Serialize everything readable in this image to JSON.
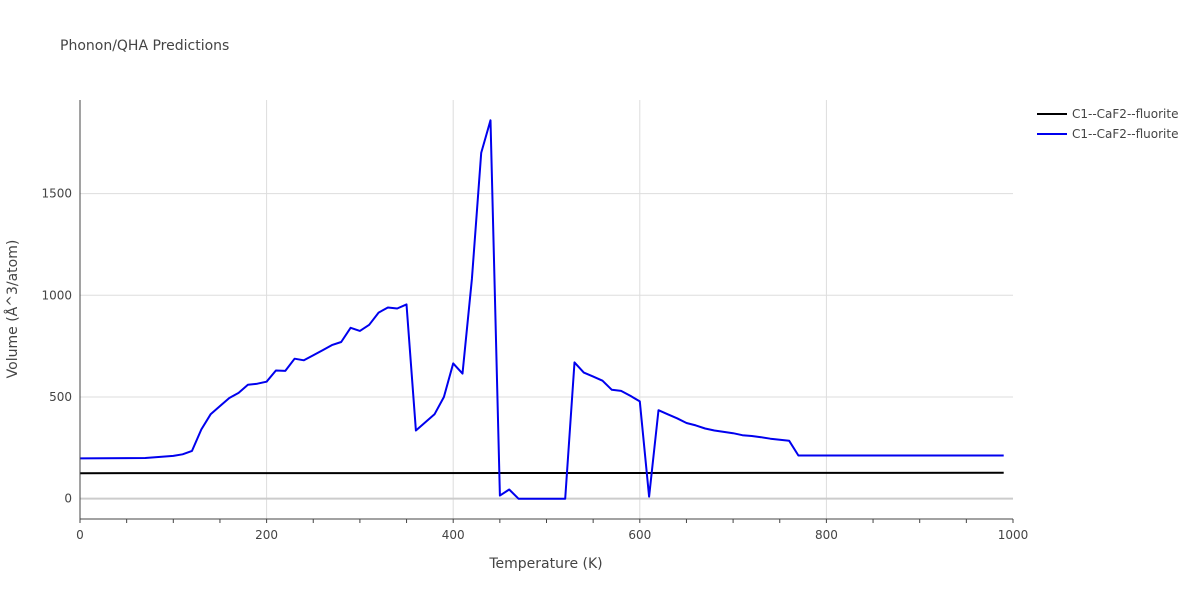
{
  "chart_data": {
    "type": "line",
    "title": "Phonon/QHA Predictions",
    "xlabel": "Temperature (K)",
    "ylabel": "Volume (Å^3/atom)",
    "xlim": [
      0,
      1000
    ],
    "ylim": [
      -100,
      1960
    ],
    "xticks": [
      0,
      200,
      400,
      600,
      800,
      1000
    ],
    "yticks": [
      0,
      500,
      1000,
      1500
    ],
    "grid": true,
    "legend_position": "top-right",
    "series": [
      {
        "name": "C1--CaF2--fluorite",
        "color": "#000000",
        "x": [
          0,
          990
        ],
        "y": [
          125,
          127
        ]
      },
      {
        "name": "C1--CaF2--fluorite",
        "color": "#0000ee",
        "x": [
          0,
          70,
          100,
          110,
          120,
          130,
          140,
          150,
          160,
          170,
          180,
          190,
          200,
          210,
          220,
          230,
          240,
          250,
          260,
          270,
          280,
          290,
          300,
          310,
          320,
          330,
          340,
          350,
          360,
          370,
          380,
          390,
          400,
          410,
          420,
          430,
          440,
          450,
          460,
          470,
          480,
          490,
          500,
          510,
          520,
          530,
          540,
          550,
          560,
          570,
          580,
          590,
          600,
          610,
          620,
          630,
          640,
          650,
          660,
          670,
          680,
          690,
          700,
          710,
          720,
          730,
          740,
          750,
          760,
          770,
          780,
          800,
          850,
          900,
          950,
          990
        ],
        "y": [
          198,
          200,
          210,
          218,
          235,
          340,
          415,
          455,
          495,
          520,
          560,
          565,
          575,
          630,
          628,
          688,
          680,
          705,
          730,
          755,
          770,
          840,
          825,
          855,
          915,
          940,
          935,
          955,
          335,
          375,
          415,
          500,
          665,
          615,
          1080,
          1700,
          1860,
          15,
          45,
          0,
          0,
          0,
          0,
          0,
          0,
          670,
          620,
          600,
          580,
          535,
          530,
          505,
          478,
          10,
          435,
          415,
          395,
          372,
          360,
          345,
          335,
          328,
          322,
          312,
          308,
          302,
          295,
          290,
          285,
          212,
          212,
          212,
          212,
          212,
          212,
          212
        ]
      }
    ]
  }
}
